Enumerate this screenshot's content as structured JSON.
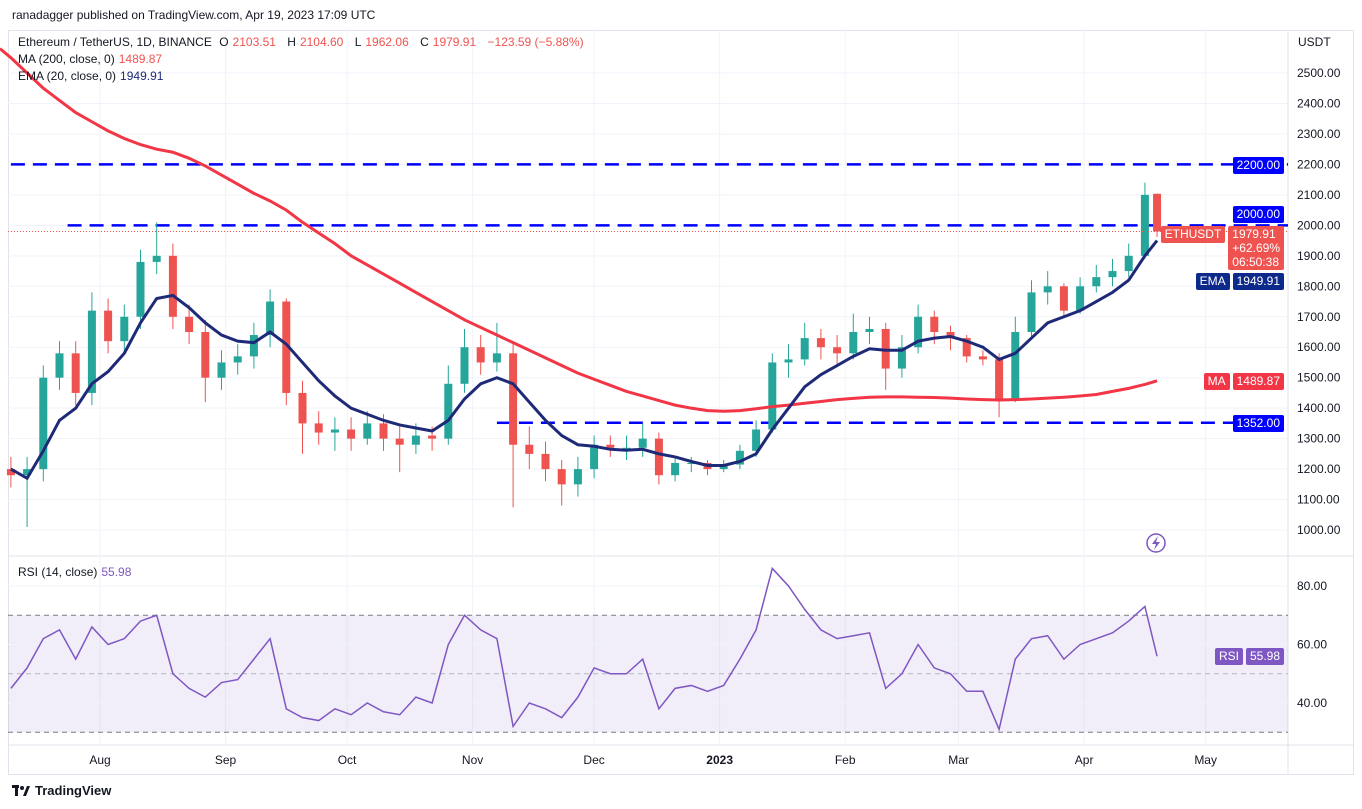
{
  "published": "ranadagger published on TradingView.com, Apr 19, 2023 17:09 UTC",
  "legend": {
    "symbol": "Ethereum / TetherUS, 1D, BINANCE",
    "o_label": "O",
    "o": "2103.51",
    "h_label": "H",
    "h": "2104.60",
    "l_label": "L",
    "l": "1962.06",
    "c_label": "C",
    "c": "1979.91",
    "change": "−123.59 (−5.88%)",
    "ma_label": "MA (200, close, 0)",
    "ma_value": "1489.87",
    "ema_label": "EMA (20, close, 0)",
    "ema_value": "1949.91",
    "rsi_label": "RSI (14, close)",
    "rsi_value": "55.98"
  },
  "badges": {
    "currency": "USDT",
    "level_2200": "2200.00",
    "level_2000": "2000.00",
    "symbol_tag": "ETHUSDT",
    "price": "1979.91",
    "pct": "+62.69%",
    "countdown": "06:50:38",
    "ema_tag": "EMA",
    "ema_value": "1949.91",
    "ma_tag": "MA",
    "ma_value": "1489.87",
    "level_1352": "1352.00",
    "rsi_tag": "RSI",
    "rsi_value": "55.98"
  },
  "brand": "TradingView",
  "colors": {
    "up": "#26a69a",
    "down": "#ef5350",
    "ema": "#1e2a78",
    "ma": "#f23645",
    "level": "#0000ff",
    "rsi": "#7e57c2"
  },
  "chart_data": {
    "type": "candlestick",
    "price_axis": {
      "ticks": [
        "2500.00",
        "2400.00",
        "2300.00",
        "2200.00",
        "2100.00",
        "2000.00",
        "1900.00",
        "1800.00",
        "1700.00",
        "1600.00",
        "1500.00",
        "1400.00",
        "1300.00",
        "1200.00",
        "1100.00",
        "1000.00"
      ],
      "range": [
        950,
        2620
      ]
    },
    "rsi_axis": {
      "ticks": [
        "80.00",
        "60.00",
        "40.00"
      ],
      "bands": [
        30,
        70
      ],
      "mid": 50
    },
    "time_axis": [
      {
        "label": "Aug",
        "date": "2022-08-01"
      },
      {
        "label": "Sep",
        "date": "2022-09-01"
      },
      {
        "label": "Oct",
        "date": "2022-10-01"
      },
      {
        "label": "Nov",
        "date": "2022-11-01"
      },
      {
        "label": "Dec",
        "date": "2022-12-01"
      },
      {
        "label": "2023",
        "date": "2023-01-01"
      },
      {
        "label": "Feb",
        "date": "2023-02-01"
      },
      {
        "label": "Mar",
        "date": "2023-03-01"
      },
      {
        "label": "Apr",
        "date": "2023-04-01"
      },
      {
        "label": "May",
        "date": "2023-05-01"
      }
    ],
    "levels": [
      {
        "value": 2200,
        "from": "2022-07-10"
      },
      {
        "value": 2000,
        "from": "2022-07-24"
      },
      {
        "value": 1352,
        "from": "2022-11-07"
      }
    ],
    "candles_columns": [
      "date",
      "open",
      "high",
      "low",
      "close",
      "ma200",
      "ema20",
      "rsi"
    ],
    "candles": [
      [
        "2022-07-10",
        1200,
        1240,
        1140,
        1180,
        2550,
        1200,
        45
      ],
      [
        "2022-07-14",
        1180,
        1240,
        1010,
        1200,
        2500,
        1170,
        52
      ],
      [
        "2022-07-18",
        1200,
        1540,
        1160,
        1500,
        2450,
        1260,
        62
      ],
      [
        "2022-07-22",
        1500,
        1620,
        1460,
        1580,
        2410,
        1360,
        65
      ],
      [
        "2022-07-26",
        1580,
        1620,
        1410,
        1450,
        2370,
        1400,
        55
      ],
      [
        "2022-07-30",
        1450,
        1780,
        1410,
        1720,
        2340,
        1480,
        66
      ],
      [
        "2022-08-03",
        1720,
        1760,
        1580,
        1620,
        2310,
        1520,
        60
      ],
      [
        "2022-08-07",
        1620,
        1740,
        1580,
        1700,
        2285,
        1580,
        62
      ],
      [
        "2022-08-11",
        1700,
        1920,
        1660,
        1880,
        2265,
        1680,
        68
      ],
      [
        "2022-08-15",
        1880,
        2010,
        1840,
        1900,
        2250,
        1760,
        70
      ],
      [
        "2022-08-19",
        1900,
        1940,
        1660,
        1700,
        2240,
        1770,
        50
      ],
      [
        "2022-08-23",
        1700,
        1740,
        1610,
        1650,
        2220,
        1730,
        45
      ],
      [
        "2022-08-27",
        1650,
        1690,
        1420,
        1500,
        2195,
        1680,
        42
      ],
      [
        "2022-08-31",
        1500,
        1590,
        1460,
        1550,
        2165,
        1640,
        47
      ],
      [
        "2022-09-04",
        1550,
        1610,
        1510,
        1570,
        2135,
        1620,
        48
      ],
      [
        "2022-09-08",
        1570,
        1680,
        1530,
        1640,
        2105,
        1615,
        55
      ],
      [
        "2022-09-12",
        1640,
        1790,
        1600,
        1750,
        2080,
        1650,
        62
      ],
      [
        "2022-09-16",
        1750,
        1760,
        1410,
        1450,
        2050,
        1610,
        38
      ],
      [
        "2022-09-20",
        1450,
        1490,
        1250,
        1350,
        2010,
        1550,
        35
      ],
      [
        "2022-09-24",
        1350,
        1390,
        1280,
        1320,
        1975,
        1490,
        34
      ],
      [
        "2022-09-28",
        1320,
        1370,
        1260,
        1330,
        1940,
        1440,
        38
      ],
      [
        "2022-10-02",
        1330,
        1370,
        1260,
        1300,
        1900,
        1400,
        36
      ],
      [
        "2022-10-06",
        1300,
        1390,
        1280,
        1350,
        1870,
        1380,
        40
      ],
      [
        "2022-10-10",
        1350,
        1380,
        1260,
        1300,
        1840,
        1360,
        37
      ],
      [
        "2022-10-14",
        1300,
        1340,
        1190,
        1280,
        1810,
        1345,
        36
      ],
      [
        "2022-10-18",
        1280,
        1350,
        1250,
        1310,
        1780,
        1335,
        42
      ],
      [
        "2022-10-22",
        1310,
        1340,
        1260,
        1300,
        1750,
        1325,
        40
      ],
      [
        "2022-10-26",
        1300,
        1540,
        1280,
        1480,
        1720,
        1360,
        60
      ],
      [
        "2022-10-30",
        1480,
        1660,
        1450,
        1600,
        1690,
        1430,
        70
      ],
      [
        "2022-11-03",
        1600,
        1640,
        1510,
        1550,
        1665,
        1480,
        65
      ],
      [
        "2022-11-07",
        1550,
        1680,
        1520,
        1580,
        1640,
        1500,
        62
      ],
      [
        "2022-11-11",
        1580,
        1610,
        1075,
        1280,
        1615,
        1480,
        32
      ],
      [
        "2022-11-15",
        1280,
        1340,
        1200,
        1250,
        1590,
        1420,
        40
      ],
      [
        "2022-11-19",
        1250,
        1290,
        1160,
        1200,
        1565,
        1360,
        38
      ],
      [
        "2022-11-23",
        1200,
        1230,
        1080,
        1150,
        1540,
        1310,
        35
      ],
      [
        "2022-11-27",
        1150,
        1240,
        1110,
        1200,
        1515,
        1280,
        42
      ],
      [
        "2022-12-01",
        1200,
        1310,
        1170,
        1280,
        1495,
        1275,
        52
      ],
      [
        "2022-12-05",
        1280,
        1310,
        1240,
        1270,
        1475,
        1265,
        50
      ],
      [
        "2022-12-09",
        1270,
        1310,
        1230,
        1270,
        1455,
        1262,
        50
      ],
      [
        "2022-12-13",
        1270,
        1350,
        1240,
        1300,
        1440,
        1265,
        55
      ],
      [
        "2022-12-17",
        1300,
        1320,
        1150,
        1180,
        1425,
        1250,
        38
      ],
      [
        "2022-12-21",
        1180,
        1240,
        1160,
        1220,
        1410,
        1240,
        45
      ],
      [
        "2022-12-25",
        1220,
        1240,
        1190,
        1220,
        1400,
        1225,
        46
      ],
      [
        "2022-12-29",
        1220,
        1230,
        1180,
        1200,
        1392,
        1212,
        44
      ],
      [
        "2023-01-02",
        1200,
        1230,
        1190,
        1215,
        1390,
        1212,
        46
      ],
      [
        "2023-01-06",
        1215,
        1280,
        1200,
        1260,
        1392,
        1225,
        55
      ],
      [
        "2023-01-10",
        1260,
        1360,
        1240,
        1330,
        1398,
        1250,
        65
      ],
      [
        "2023-01-14",
        1330,
        1580,
        1320,
        1550,
        1405,
        1330,
        86
      ],
      [
        "2023-01-18",
        1550,
        1610,
        1500,
        1560,
        1410,
        1400,
        80
      ],
      [
        "2023-01-22",
        1560,
        1680,
        1540,
        1630,
        1416,
        1470,
        72
      ],
      [
        "2023-01-26",
        1630,
        1660,
        1560,
        1600,
        1422,
        1510,
        65
      ],
      [
        "2023-01-30",
        1600,
        1640,
        1540,
        1580,
        1428,
        1540,
        62
      ],
      [
        "2023-02-03",
        1580,
        1710,
        1560,
        1650,
        1432,
        1570,
        63
      ],
      [
        "2023-02-07",
        1650,
        1700,
        1610,
        1660,
        1436,
        1595,
        64
      ],
      [
        "2023-02-11",
        1660,
        1680,
        1460,
        1530,
        1437,
        1590,
        45
      ],
      [
        "2023-02-15",
        1530,
        1640,
        1500,
        1600,
        1437,
        1590,
        50
      ],
      [
        "2023-02-19",
        1600,
        1740,
        1580,
        1700,
        1436,
        1620,
        60
      ],
      [
        "2023-02-23",
        1700,
        1720,
        1610,
        1650,
        1435,
        1630,
        52
      ],
      [
        "2023-02-27",
        1650,
        1670,
        1590,
        1630,
        1433,
        1635,
        50
      ],
      [
        "2023-03-03",
        1630,
        1640,
        1550,
        1570,
        1430,
        1620,
        44
      ],
      [
        "2023-03-07",
        1570,
        1590,
        1540,
        1560,
        1428,
        1600,
        44
      ],
      [
        "2023-03-11",
        1560,
        1580,
        1370,
        1430,
        1427,
        1560,
        31
      ],
      [
        "2023-03-15",
        1430,
        1700,
        1420,
        1650,
        1428,
        1580,
        55
      ],
      [
        "2023-03-19",
        1650,
        1820,
        1630,
        1780,
        1430,
        1630,
        62
      ],
      [
        "2023-03-23",
        1780,
        1850,
        1740,
        1800,
        1433,
        1680,
        63
      ],
      [
        "2023-03-27",
        1800,
        1810,
        1700,
        1720,
        1436,
        1700,
        55
      ],
      [
        "2023-03-31",
        1720,
        1830,
        1710,
        1800,
        1440,
        1720,
        60
      ],
      [
        "2023-04-04",
        1800,
        1870,
        1780,
        1830,
        1445,
        1750,
        62
      ],
      [
        "2023-04-08",
        1830,
        1890,
        1800,
        1850,
        1455,
        1780,
        64
      ],
      [
        "2023-04-12",
        1850,
        1940,
        1830,
        1900,
        1465,
        1820,
        68
      ],
      [
        "2023-04-16",
        1900,
        2140,
        1890,
        2100,
        1478,
        1900,
        73
      ],
      [
        "2023-04-19",
        2103.51,
        2104.6,
        1962.06,
        1979.91,
        1489.87,
        1949.91,
        55.98
      ]
    ]
  }
}
